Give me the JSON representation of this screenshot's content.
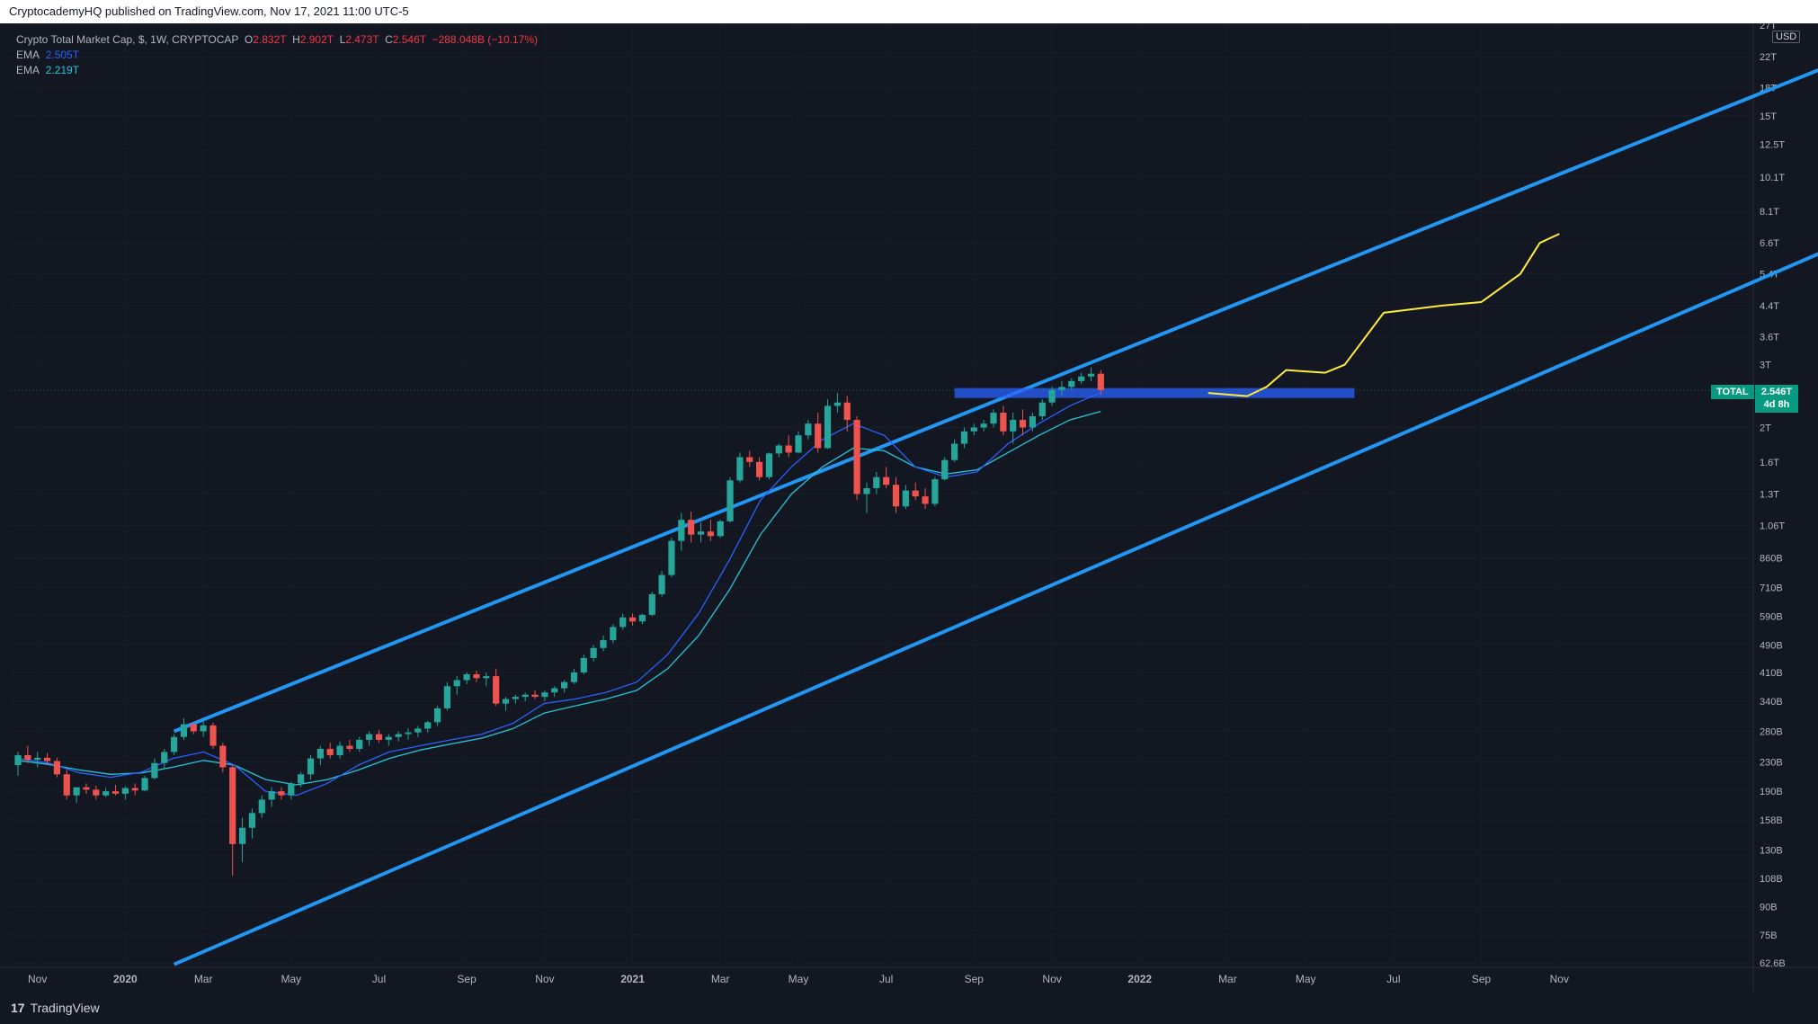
{
  "header": {
    "published": "CryptocademyHQ published on TradingView.com, Nov 17, 2021 11:00 UTC-5"
  },
  "legend": {
    "symbol": "Crypto Total Market Cap, $, 1W, CRYPTOCAP",
    "o_label": "O",
    "o_value": "2.832T",
    "h_label": "H",
    "h_value": "2.902T",
    "l_label": "L",
    "l_value": "2.473T",
    "c_label": "C",
    "c_value": "2.546T",
    "change": "−288.048B (−10.17%)",
    "ema1_label": "EMA",
    "ema1_value": "2.505T",
    "ema2_label": "EMA",
    "ema2_value": "2.219T"
  },
  "price_scale": {
    "currency": "USD",
    "ticks": [
      "27T",
      "22T",
      "18T",
      "15T",
      "12.5T",
      "10.1T",
      "8.1T",
      "6.6T",
      "5.4T",
      "4.4T",
      "3.6T",
      "3T",
      "2T",
      "1.6T",
      "1.3T",
      "1.06T",
      "860B",
      "710B",
      "590B",
      "490B",
      "410B",
      "340B",
      "280B",
      "230B",
      "190B",
      "158B",
      "130B",
      "108B",
      "90B",
      "75B",
      "62.6B"
    ],
    "total_label": "TOTAL",
    "last_price": "2.546T",
    "countdown": "4d 8h"
  },
  "time_scale": {
    "ticks": [
      "Nov",
      "2020",
      "Mar",
      "May",
      "Jul",
      "Sep",
      "Nov",
      "2021",
      "Mar",
      "May",
      "Jul",
      "Sep",
      "Nov",
      "2022",
      "Mar",
      "May",
      "Jul",
      "Sep",
      "Nov"
    ]
  },
  "footer": {
    "brand": "TradingView",
    "logo_mark": "17"
  },
  "colors": {
    "up": "#26a69a",
    "down": "#ef5350",
    "channel": "#2196f3",
    "ema_fast": "#2962ff",
    "ema_slow": "#26c6da",
    "projection": "#ffeb3b",
    "zone": "#2962ff",
    "background": "#131722",
    "grid": "#1e222d"
  },
  "chart_data": {
    "type": "candlestick",
    "title": "Crypto Total Market Cap, $, 1W, CRYPTOCAP",
    "timeframe": "1W",
    "x_start": "2019-10-14",
    "x_step_days": 7,
    "y_scale": "log",
    "ylim_usd": [
      60000000000.0,
      27000000000000.0
    ],
    "candles_ohlc_billions": [
      [
        225,
        245,
        210,
        240
      ],
      [
        240,
        255,
        228,
        233
      ],
      [
        233,
        245,
        222,
        236
      ],
      [
        236,
        243,
        225,
        231
      ],
      [
        231,
        236,
        208,
        212
      ],
      [
        212,
        218,
        180,
        185
      ],
      [
        185,
        195,
        176,
        195
      ],
      [
        195,
        200,
        187,
        192
      ],
      [
        192,
        197,
        180,
        185
      ],
      [
        185,
        194,
        183,
        190
      ],
      [
        190,
        198,
        185,
        187
      ],
      [
        187,
        196,
        180,
        194
      ],
      [
        194,
        200,
        185,
        191
      ],
      [
        191,
        210,
        190,
        207
      ],
      [
        207,
        235,
        205,
        228
      ],
      [
        228,
        250,
        220,
        245
      ],
      [
        245,
        275,
        240,
        270
      ],
      [
        270,
        305,
        265,
        293
      ],
      [
        293,
        298,
        275,
        280
      ],
      [
        280,
        300,
        270,
        291
      ],
      [
        291,
        296,
        250,
        255
      ],
      [
        255,
        260,
        215,
        222
      ],
      [
        222,
        225,
        110,
        135
      ],
      [
        135,
        160,
        120,
        150
      ],
      [
        150,
        170,
        140,
        165
      ],
      [
        165,
        185,
        160,
        180
      ],
      [
        180,
        195,
        172,
        190
      ],
      [
        190,
        195,
        180,
        185
      ],
      [
        185,
        202,
        180,
        200
      ],
      [
        200,
        215,
        195,
        212
      ],
      [
        212,
        240,
        205,
        235
      ],
      [
        235,
        255,
        225,
        250
      ],
      [
        250,
        260,
        235,
        240
      ],
      [
        240,
        262,
        235,
        255
      ],
      [
        255,
        265,
        245,
        250
      ],
      [
        250,
        270,
        245,
        265
      ],
      [
        265,
        280,
        255,
        275
      ],
      [
        275,
        282,
        260,
        265
      ],
      [
        265,
        275,
        255,
        270
      ],
      [
        270,
        280,
        262,
        275
      ],
      [
        275,
        285,
        265,
        278
      ],
      [
        278,
        290,
        270,
        285
      ],
      [
        285,
        300,
        278,
        297
      ],
      [
        297,
        330,
        290,
        325
      ],
      [
        325,
        385,
        320,
        375
      ],
      [
        375,
        400,
        355,
        390
      ],
      [
        390,
        410,
        380,
        405
      ],
      [
        405,
        415,
        385,
        395
      ],
      [
        395,
        410,
        375,
        400
      ],
      [
        400,
        420,
        330,
        335
      ],
      [
        335,
        350,
        320,
        345
      ],
      [
        345,
        355,
        335,
        350
      ],
      [
        350,
        360,
        340,
        355
      ],
      [
        355,
        365,
        345,
        350
      ],
      [
        350,
        365,
        340,
        360
      ],
      [
        360,
        375,
        350,
        370
      ],
      [
        370,
        390,
        360,
        385
      ],
      [
        385,
        420,
        380,
        410
      ],
      [
        410,
        460,
        405,
        450
      ],
      [
        450,
        490,
        440,
        480
      ],
      [
        480,
        520,
        470,
        505
      ],
      [
        505,
        560,
        495,
        550
      ],
      [
        550,
        600,
        540,
        585
      ],
      [
        585,
        600,
        555,
        570
      ],
      [
        570,
        600,
        560,
        595
      ],
      [
        595,
        690,
        590,
        680
      ],
      [
        680,
        790,
        670,
        770
      ],
      [
        770,
        980,
        760,
        960
      ],
      [
        960,
        1150,
        900,
        1100
      ],
      [
        1100,
        1160,
        950,
        1000
      ],
      [
        1000,
        1080,
        950,
        1020
      ],
      [
        1020,
        1100,
        960,
        990
      ],
      [
        990,
        1100,
        980,
        1090
      ],
      [
        1090,
        1450,
        1080,
        1420
      ],
      [
        1420,
        1700,
        1400,
        1650
      ],
      [
        1650,
        1720,
        1550,
        1600
      ],
      [
        1600,
        1650,
        1420,
        1450
      ],
      [
        1450,
        1700,
        1430,
        1690
      ],
      [
        1690,
        1800,
        1650,
        1780
      ],
      [
        1780,
        1900,
        1650,
        1700
      ],
      [
        1700,
        1950,
        1690,
        1900
      ],
      [
        1900,
        2100,
        1850,
        2050
      ],
      [
        2050,
        2200,
        1700,
        1750
      ],
      [
        1750,
        2400,
        1740,
        2300
      ],
      [
        2300,
        2500,
        2200,
        2350
      ],
      [
        2350,
        2450,
        1950,
        2100
      ],
      [
        2100,
        2150,
        1250,
        1300
      ],
      [
        1300,
        1400,
        1150,
        1350
      ],
      [
        1350,
        1500,
        1300,
        1450
      ],
      [
        1450,
        1550,
        1350,
        1380
      ],
      [
        1380,
        1450,
        1150,
        1200
      ],
      [
        1200,
        1380,
        1180,
        1330
      ],
      [
        1330,
        1400,
        1250,
        1280
      ],
      [
        1280,
        1350,
        1180,
        1220
      ],
      [
        1220,
        1450,
        1200,
        1430
      ],
      [
        1430,
        1650,
        1420,
        1620
      ],
      [
        1620,
        1850,
        1600,
        1800
      ],
      [
        1800,
        2000,
        1750,
        1950
      ],
      [
        1950,
        2050,
        1900,
        2000
      ],
      [
        2000,
        2100,
        1950,
        2050
      ],
      [
        2050,
        2250,
        2000,
        2200
      ],
      [
        2200,
        2300,
        1900,
        1950
      ],
      [
        1950,
        2200,
        1800,
        2100
      ],
      [
        2100,
        2250,
        1900,
        2000
      ],
      [
        2000,
        2200,
        1950,
        2150
      ],
      [
        2150,
        2400,
        2100,
        2350
      ],
      [
        2350,
        2600,
        2300,
        2550
      ],
      [
        2550,
        2700,
        2450,
        2600
      ],
      [
        2600,
        2750,
        2550,
        2700
      ],
      [
        2700,
        2850,
        2650,
        2780
      ],
      [
        2780,
        2950,
        2700,
        2832
      ],
      [
        2832,
        2902,
        2473,
        2546
      ]
    ],
    "ema_fast_billions_sampled": [
      235,
      228,
      214,
      208,
      215,
      235,
      245,
      225,
      190,
      185,
      200,
      225,
      245,
      255,
      265,
      275,
      295,
      335,
      345,
      360,
      385,
      460,
      600,
      850,
      1250,
      1550,
      1850,
      2050,
      1900,
      1550,
      1450,
      1500,
      1800,
      2050,
      2300,
      2505
    ],
    "ema_slow_billions_sampled": [
      232,
      226,
      218,
      212,
      214,
      222,
      232,
      225,
      205,
      198,
      205,
      218,
      235,
      248,
      258,
      268,
      285,
      315,
      330,
      345,
      365,
      420,
      520,
      700,
      1000,
      1300,
      1550,
      1750,
      1720,
      1550,
      1480,
      1520,
      1700,
      1900,
      2100,
      2219
    ],
    "upper_channel_billions": [
      [
        0,
        280
      ],
      [
        100,
        2400
      ],
      [
        180,
        27000
      ]
    ],
    "lower_channel_billions": [
      [
        0,
        62
      ],
      [
        100,
        1320
      ],
      [
        180,
        8400
      ]
    ],
    "zone_billions": [
      2420,
      2580
    ],
    "projection_billions": [
      [
        106,
        2500
      ],
      [
        110,
        2450
      ],
      [
        112,
        2600
      ],
      [
        114,
        2900
      ],
      [
        118,
        2850
      ],
      [
        120,
        3000
      ],
      [
        124,
        4200
      ],
      [
        130,
        4400
      ],
      [
        134,
        4500
      ],
      [
        138,
        5400
      ],
      [
        140,
        6600
      ],
      [
        142,
        7000
      ]
    ]
  }
}
